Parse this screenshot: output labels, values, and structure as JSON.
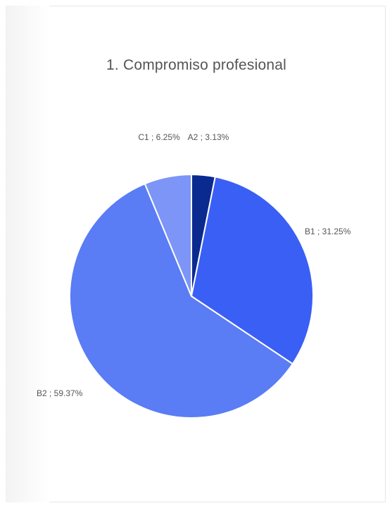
{
  "chart_data": {
    "type": "pie",
    "title": "1. Compromiso profesional",
    "slices": [
      {
        "label": "A2",
        "value": 3.13,
        "display": "A2 ; 3.13%",
        "color": "#0b2a8f"
      },
      {
        "label": "B1",
        "value": 31.25,
        "display": "B1 ; 31.25%",
        "color": "#3a5ff5"
      },
      {
        "label": "B2",
        "value": 59.37,
        "display": "B2 ; 59.37%",
        "color": "#5a7cf4"
      },
      {
        "label": "C1",
        "value": 6.25,
        "display": "C1 ; 6.25%",
        "color": "#7c95f6"
      }
    ],
    "start_angle_deg": 0,
    "direction": "clockwise",
    "label_color": "#555555",
    "slice_border_color": "#ffffff"
  }
}
